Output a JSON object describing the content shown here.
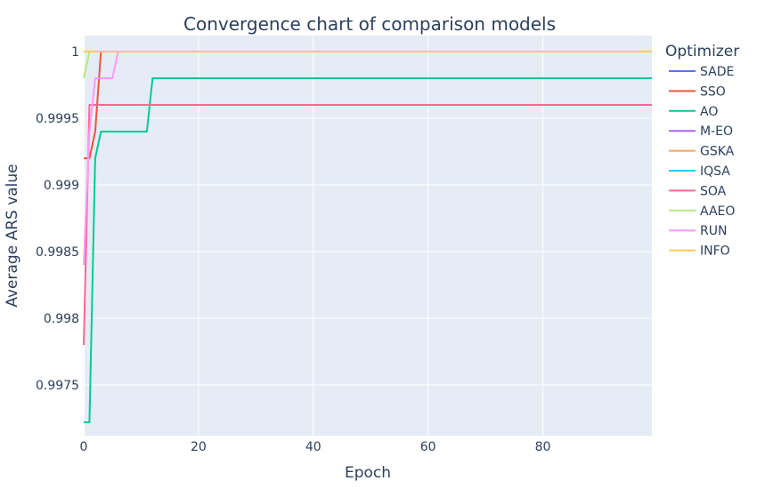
{
  "chart_data": {
    "type": "line",
    "title": "Convergence chart of comparison models",
    "xlabel": "Epoch",
    "ylabel": "Average ARS value",
    "xlim": [
      0,
      99
    ],
    "ylim": [
      0.99712,
      1.00012
    ],
    "x_ticks": [
      0,
      20,
      40,
      60,
      80
    ],
    "x_tick_labels": [
      "0",
      "20",
      "40",
      "60",
      "80"
    ],
    "y_ticks": [
      0.9975,
      0.998,
      0.9985,
      0.999,
      0.9995,
      1.0
    ],
    "y_tick_labels": [
      "0.9975",
      "0.998",
      "0.9985",
      "0.999",
      "0.9995",
      "1"
    ],
    "grid": true,
    "legend_title": "Optimizer",
    "legend_position": "right",
    "colors": {
      "plot_bg": "#e5ecf6",
      "grid": "#ffffff"
    },
    "series": [
      {
        "name": "SADE",
        "color": "#636efa",
        "points": [
          [
            0,
            1.0
          ],
          [
            99,
            1.0
          ]
        ]
      },
      {
        "name": "SSO",
        "color": "#ef553b",
        "points": [
          [
            0,
            0.9992
          ],
          [
            1,
            0.9992
          ],
          [
            2,
            0.9994
          ],
          [
            3,
            1.0
          ],
          [
            99,
            1.0
          ]
        ]
      },
      {
        "name": "AO",
        "color": "#00cc96",
        "points": [
          [
            0,
            0.99722
          ],
          [
            1,
            0.99722
          ],
          [
            2,
            0.9992
          ],
          [
            3,
            0.9994
          ],
          [
            11,
            0.9994
          ],
          [
            12,
            0.9998
          ],
          [
            99,
            0.9998
          ]
        ]
      },
      {
        "name": "M-EO",
        "color": "#ab63fa",
        "points": [
          [
            0,
            1.0
          ],
          [
            99,
            1.0
          ]
        ]
      },
      {
        "name": "GSKA",
        "color": "#ffa15a",
        "points": [
          [
            0,
            1.0
          ],
          [
            99,
            1.0
          ]
        ]
      },
      {
        "name": "IQSA",
        "color": "#19d3f3",
        "points": [
          [
            0,
            1.0
          ],
          [
            99,
            1.0
          ]
        ]
      },
      {
        "name": "SOA",
        "color": "#ff6692",
        "points": [
          [
            0,
            0.9978
          ],
          [
            1,
            0.9996
          ],
          [
            99,
            0.9996
          ]
        ]
      },
      {
        "name": "AAEO",
        "color": "#b6e880",
        "points": [
          [
            0,
            0.9998
          ],
          [
            1,
            1.0
          ],
          [
            99,
            1.0
          ]
        ]
      },
      {
        "name": "RUN",
        "color": "#ff97ff",
        "points": [
          [
            0,
            0.9984
          ],
          [
            1,
            0.9994
          ],
          [
            2,
            0.9998
          ],
          [
            5,
            0.9998
          ],
          [
            6,
            1.0
          ],
          [
            99,
            1.0
          ]
        ]
      },
      {
        "name": "INFO",
        "color": "#fecb52",
        "points": [
          [
            0,
            1.0
          ],
          [
            99,
            1.0
          ]
        ]
      }
    ]
  }
}
